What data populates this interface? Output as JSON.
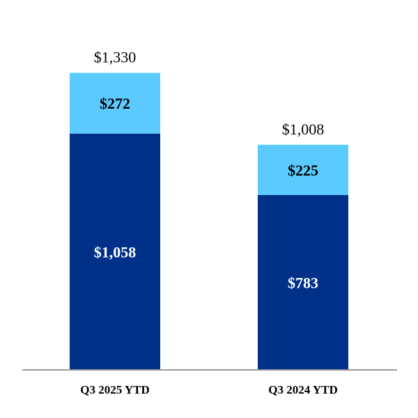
{
  "chart_data": {
    "type": "bar",
    "stacked": true,
    "categories": [
      "Q3 2025 YTD",
      "Q3 2024 YTD"
    ],
    "series": [
      {
        "values": [
          1058,
          783
        ],
        "labels": [
          "$1,058",
          "$783"
        ],
        "color": "#003087",
        "label_color": "#ffffff"
      },
      {
        "values": [
          272,
          225
        ],
        "labels": [
          "$272",
          "$225"
        ],
        "color": "#5bcbff",
        "label_color": "#000000"
      }
    ],
    "totals": [
      1330,
      1008
    ],
    "total_labels": [
      "$1,330",
      "$1,008"
    ],
    "ylim": [
      0,
      1500
    ],
    "grid": false,
    "axis_color": "#999999"
  }
}
